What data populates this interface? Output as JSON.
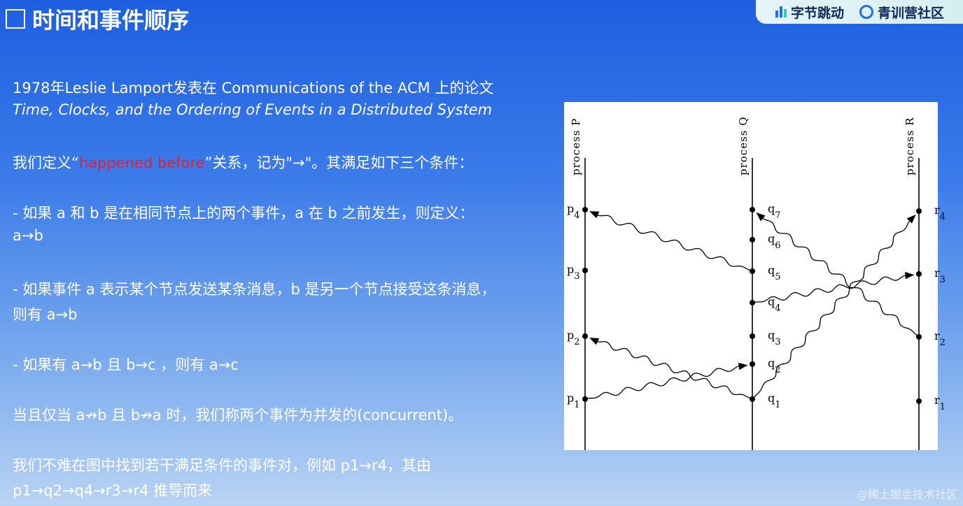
{
  "title": "时间和事件顺序",
  "brand": {
    "bytedance": "字节跳动",
    "camp": "青训营社区"
  },
  "body": {
    "l1": "1978年Leslie Lamport发表在 Communications of the ACM 上的论文",
    "l2": "Time, Clocks, and the Ordering of Events in a Distributed System",
    "l3a": "我们定义“",
    "l3b": "happened before",
    "l3c": "”关系，记为\"→\"。其满足如下三个条件：",
    "l4": "- 如果 a 和 b 是在相同节点上的两个事件，a 在 b 之前发生，则定义：",
    "l5": "a→b",
    "l6": "- 如果事件 a 表示某个节点发送某条消息，b 是另一个节点接受这条消息，",
    "l7": "则有 a→b",
    "l8": "- 如果有 a→b 且 b→c ，则有 a→c",
    "l9": "当且仅当 a↛b 且 b↛a 时，我们称两个事件为并发的(concurrent)。",
    "l10": "我们不难在图中找到若干满足条件的事件对，例如 p1→r4，其由",
    "l11": "p1→q2→q4→r3→r4 推导而来"
  },
  "diagram": {
    "processes": [
      {
        "label": "process P",
        "events": [
          "p1",
          "p2",
          "p3",
          "p4"
        ]
      },
      {
        "label": "process Q",
        "events": [
          "q1",
          "q2",
          "q3",
          "q4",
          "q5",
          "q6",
          "q7"
        ]
      },
      {
        "label": "process R",
        "events": [
          "r1",
          "r2",
          "r3",
          "r4"
        ]
      }
    ],
    "messages": [
      [
        "p1",
        "q2"
      ],
      [
        "q1",
        "p2"
      ],
      [
        "q1",
        "r4"
      ],
      [
        "q4",
        "r3"
      ],
      [
        "r2",
        "q7"
      ],
      [
        "q5",
        "p4"
      ]
    ]
  },
  "footer": "@稀土掘金技术社区"
}
